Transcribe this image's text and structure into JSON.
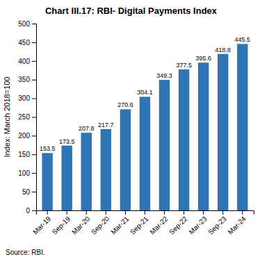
{
  "chart_data": {
    "type": "bar",
    "title": "Chart III.17: RBI- Digital Payments Index",
    "ylabel": "Index: March 2018=100",
    "source": "Source: RBI.",
    "categories": [
      "Mar-19",
      "Sep-19",
      "Mar-20",
      "Sep-20",
      "Mar-21",
      "Sep-21",
      "Mar-22",
      "Sep-22",
      "Mar-23",
      "Sep-23",
      "Mar-24"
    ],
    "values": [
      153.5,
      173.5,
      207.8,
      217.7,
      270.6,
      304.1,
      349.3,
      377.5,
      395.6,
      418.8,
      445.5
    ],
    "color": "#2E75B6",
    "ylim": [
      0,
      500
    ],
    "yticks": [
      0,
      50,
      100,
      150,
      200,
      250,
      300,
      350,
      400,
      450,
      500
    ],
    "grid": false,
    "data_labels": true
  }
}
